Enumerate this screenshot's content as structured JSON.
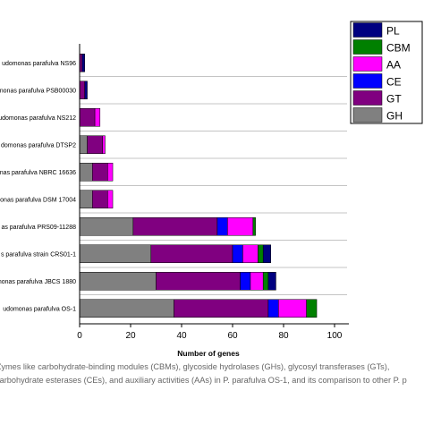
{
  "chart_data": {
    "type": "bar",
    "stacked": true,
    "orientation": "horizontal",
    "xlabel": "Number of genes",
    "ylabel": "",
    "xlim": [
      0,
      100
    ],
    "xticks": [
      0,
      20,
      40,
      60,
      80,
      100
    ],
    "grid": "horizontal gridlines",
    "legend_position": "top-right",
    "categories": [
      "udomonas parafulva NS96",
      "nonas parafulva PSB00030",
      "udomonas parafulva NS212",
      "domonas parafulva DTSP2",
      "nas parafulva NBRC 16636",
      "monas parafulva DSM 17004",
      "as parafulva PRS09-11288",
      "s parafulva strain CRS01-1",
      "nonas parafulva JBCS 1880",
      "udomonas parafulva OS-1"
    ],
    "series": [
      {
        "name": "GH",
        "color": "#808080",
        "values": [
          0,
          0,
          0,
          3,
          5,
          5,
          21,
          28,
          30,
          37
        ]
      },
      {
        "name": "GT",
        "color": "#800080",
        "values": [
          1,
          2,
          6,
          6,
          6,
          6,
          33,
          32,
          33,
          37
        ]
      },
      {
        "name": "CE",
        "color": "#0000ff",
        "values": [
          0,
          0,
          0,
          0,
          0,
          0,
          4,
          4,
          4,
          4
        ]
      },
      {
        "name": "AA",
        "color": "#ff00ff",
        "values": [
          0,
          0,
          2,
          1,
          2,
          2,
          10,
          6,
          5,
          11
        ]
      },
      {
        "name": "CBM",
        "color": "#008000",
        "values": [
          0,
          0,
          0,
          0,
          0,
          0,
          1,
          2,
          2,
          4
        ]
      },
      {
        "name": "PL",
        "color": "#000080",
        "values": [
          1,
          1,
          0,
          0,
          0,
          0,
          0,
          3,
          3,
          0
        ]
      }
    ],
    "legend_order": [
      "PL",
      "CBM",
      "AA",
      "CE",
      "GT",
      "GH"
    ]
  },
  "caption": {
    "line1": "CAZymes like carbohydrate-binding modules (CBMs), glycoside hydrolases (GHs), glycosyl transferases (GTs),",
    "line2": "carbohydrate esterases (CEs), and auxiliary activities (AAs) in P. parafulva OS-1, and its comparison to other P. p"
  }
}
